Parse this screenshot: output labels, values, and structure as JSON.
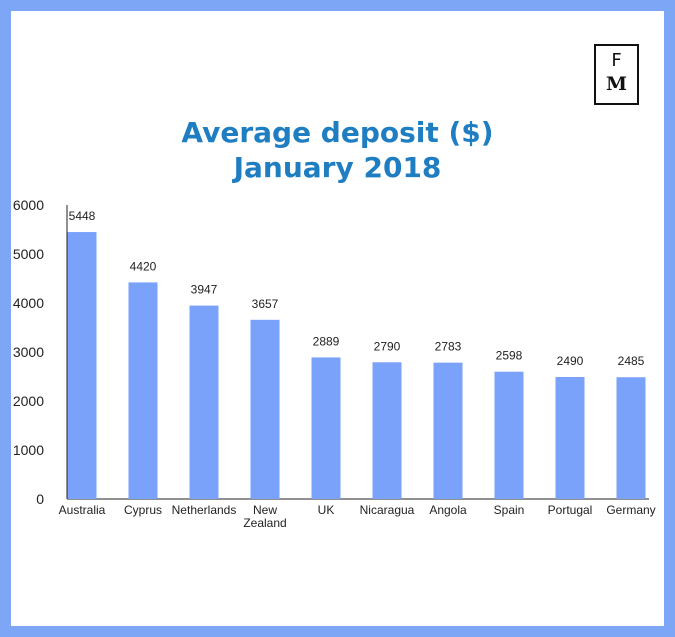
{
  "logo": {
    "top": "F",
    "bottom": "M"
  },
  "chart_data": {
    "type": "bar",
    "title_lines": [
      "Average deposit ($)",
      "January 2018"
    ],
    "categories": [
      [
        "Australia"
      ],
      [
        "Cyprus"
      ],
      [
        "Netherlands"
      ],
      [
        "New",
        "Zealand"
      ],
      [
        "UK"
      ],
      [
        "Nicaragua"
      ],
      [
        "Angola"
      ],
      [
        "Spain"
      ],
      [
        "Portugal"
      ],
      [
        "Germany"
      ]
    ],
    "values": [
      5448,
      4420,
      3947,
      3657,
      2889,
      2790,
      2783,
      2598,
      2490,
      2485
    ],
    "data_labels": [
      "5448",
      "4420",
      "3947",
      "3657",
      "2889",
      "2790",
      "2783",
      "2598",
      "2490",
      "2485"
    ],
    "ylim": [
      0,
      6000
    ],
    "yticks": [
      0,
      1000,
      2000,
      3000,
      4000,
      5000,
      6000
    ],
    "ytick_labels": [
      "0",
      "1000",
      "2000",
      "3000",
      "4000",
      "5000",
      "6000"
    ],
    "xlabel": "",
    "ylabel": "",
    "grid": false,
    "bar_color": "#7aa2fb",
    "accent_color": "#1f7ec1",
    "frame_color": "#7ea6f7"
  }
}
